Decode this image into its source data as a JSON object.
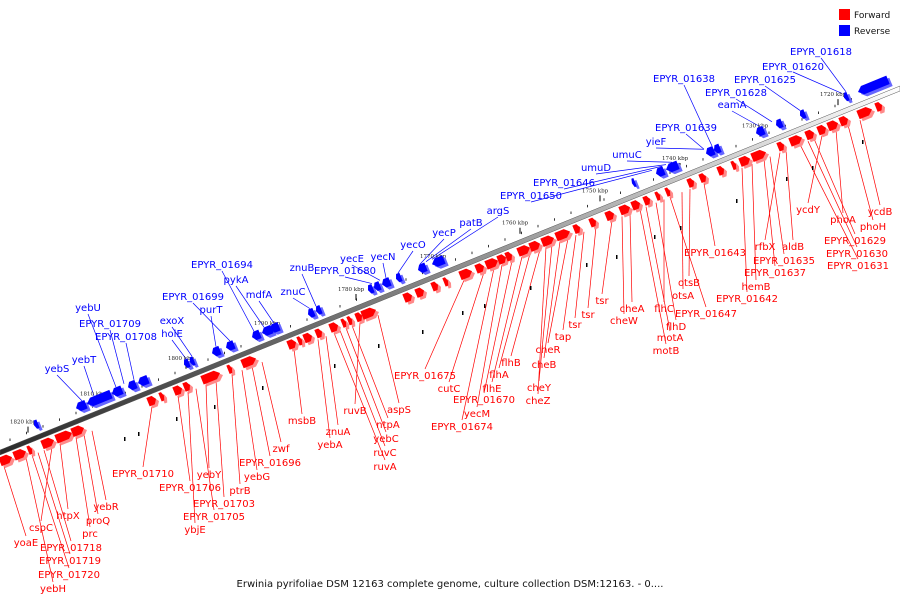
{
  "legend": {
    "forward_label": "Forward",
    "reverse_label": "Reverse",
    "forward_color": "#ff0000",
    "reverse_color": "#0000ff"
  },
  "caption": "Erwinia pyrifoliae DSM 12163 complete genome, culture collection DSM:12163. - 0....",
  "axis": {
    "ticks": [
      "1820 kbp",
      "1810 kbp",
      "1800 kbp",
      "1790 kbp",
      "1780 kbp",
      "1770 kbp",
      "1760 kbp",
      "1750 kbp",
      "1740 kbp",
      "1730 kbp",
      "1720 kbp"
    ]
  },
  "genes": {
    "reverse": [
      "EPYR_01618",
      "EPYR_01620",
      "EPYR_01625",
      "EPYR_01628",
      "eamA",
      "EPYR_01638",
      "EPYR_01639",
      "yieF",
      "umuC",
      "umuD",
      "EPYR_01646",
      "EPYR_01650",
      "argS",
      "patB",
      "yecP",
      "yecO",
      "yecN",
      "yecE",
      "EPYR_01680",
      "znuB",
      "znuC",
      "mdfA",
      "pykA",
      "EPYR_01694",
      "EPYR_01699",
      "purT",
      "exoX",
      "holE",
      "EPYR_01708",
      "EPYR_01709",
      "yebU",
      "yebT",
      "yebS"
    ],
    "forward": [
      "ycdB",
      "phoH",
      "phoA",
      "ycdY",
      "EPYR_01629",
      "EPYR_01630",
      "EPYR_01631",
      "aldB",
      "rfbX",
      "EPYR_01635",
      "EPYR_01637",
      "hemB",
      "EPYR_01642",
      "EPYR_01643",
      "otsB",
      "otsA",
      "EPYR_01647",
      "flhC",
      "flhD",
      "motA",
      "motB",
      "cheA",
      "cheW",
      "tsr",
      "tsr",
      "tsr",
      "tap",
      "cheR",
      "cheB",
      "cheY",
      "cheZ",
      "flhB",
      "flhA",
      "flhE",
      "EPYR_01670",
      "yecM",
      "EPYR_01674",
      "cutC",
      "EPYR_01675",
      "aspS",
      "ruvB",
      "ntpA",
      "yebC",
      "ruvC",
      "ruvA",
      "znuA",
      "yebA",
      "msbB",
      "zwf",
      "EPYR_01696",
      "yebG",
      "ptrB",
      "EPYR_01703",
      "yebY",
      "EPYR_01705",
      "ybjE",
      "EPYR_01706",
      "EPYR_01710",
      "yebR",
      "proQ",
      "prc",
      "htpX",
      "cspC",
      "yoaE",
      "EPYR_01718",
      "EPYR_01719",
      "EPYR_01720",
      "yebH"
    ]
  }
}
